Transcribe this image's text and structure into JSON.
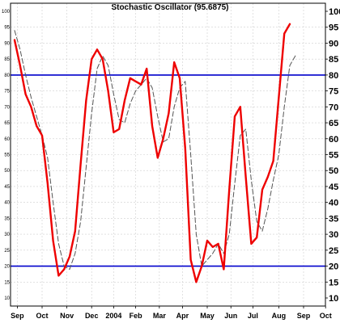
{
  "chart_data": {
    "type": "line",
    "title": "Stochastic Oscillator (95.6875)",
    "xlabel": "",
    "ylabel": "",
    "ylim": [
      10,
      100
    ],
    "y_ticks": [
      10,
      15,
      20,
      25,
      30,
      35,
      40,
      45,
      50,
      55,
      60,
      65,
      70,
      75,
      80,
      85,
      90,
      95,
      100
    ],
    "x_ticks": [
      {
        "label": "Sep",
        "x": 0.5
      },
      {
        "label": "Oct",
        "x": 5.0
      },
      {
        "label": "Nov",
        "x": 9.5
      },
      {
        "label": "Dec",
        "x": 14.0
      },
      {
        "label": "2004",
        "x": 18.0
      },
      {
        "label": "Feb",
        "x": 22.0
      },
      {
        "label": "Mar",
        "x": 26.3
      },
      {
        "label": "Apr",
        "x": 30.5
      },
      {
        "label": "May",
        "x": 35.0
      },
      {
        "label": "Jun",
        "x": 39.3
      },
      {
        "label": "Jul",
        "x": 43.3
      },
      {
        "label": "Aug",
        "x": 48.0
      },
      {
        "label": "Sep",
        "x": 52.5
      },
      {
        "label": "Oct",
        "x": 56.5
      }
    ],
    "reference_lines": [
      {
        "value": 80,
        "color": "#0000cc"
      },
      {
        "value": 20,
        "color": "#0000cc"
      }
    ],
    "grid": true,
    "legend": "none",
    "series": [
      {
        "color": "#ee0000",
        "style": "solid",
        "x": [
          0,
          1,
          2,
          3,
          4,
          5,
          6,
          7,
          8,
          9,
          10,
          11,
          12,
          13,
          14,
          15,
          16,
          17,
          18,
          19,
          20,
          21,
          22,
          23,
          24,
          25,
          26,
          27,
          28,
          29,
          30,
          31,
          32,
          33,
          34,
          35,
          36,
          37,
          38,
          39,
          40,
          41,
          42,
          43,
          44,
          45,
          46,
          47,
          48,
          49,
          50,
          51,
          52
        ],
        "values": [
          91,
          83,
          74,
          70,
          64,
          61,
          46,
          28,
          17,
          19,
          23,
          31,
          52,
          72,
          85,
          88,
          85,
          75,
          62,
          63,
          72,
          79,
          78,
          77,
          82,
          64,
          54,
          60,
          68,
          84,
          79,
          57,
          22,
          15,
          20,
          28,
          26,
          27,
          19,
          44,
          67,
          70,
          48,
          27,
          29,
          44,
          48,
          53,
          73,
          93,
          96,
          null,
          null
        ]
      },
      {
        "color": "#555555",
        "style": "dashed",
        "x": [
          0,
          1,
          2,
          3,
          4,
          5,
          6,
          7,
          8,
          9,
          10,
          11,
          12,
          13,
          14,
          15,
          16,
          17,
          18,
          19,
          20,
          21,
          22,
          23,
          24,
          25,
          26,
          27,
          28,
          29,
          30,
          31,
          32,
          33,
          34,
          35,
          36,
          37,
          38,
          39,
          40,
          41,
          42,
          43,
          44,
          45,
          46,
          47,
          48,
          49,
          50,
          51,
          52
        ],
        "values": [
          94,
          88,
          80,
          73,
          67,
          61,
          54,
          40,
          27,
          20,
          19,
          24,
          34,
          51,
          68,
          82,
          86,
          83,
          74,
          66,
          65,
          71,
          75,
          77,
          79,
          76,
          67,
          59,
          60,
          70,
          76,
          78,
          55,
          30,
          20,
          22,
          24,
          27,
          24,
          30,
          46,
          61,
          63,
          47,
          34,
          31,
          38,
          47,
          55,
          70,
          83,
          86,
          null
        ]
      }
    ]
  }
}
